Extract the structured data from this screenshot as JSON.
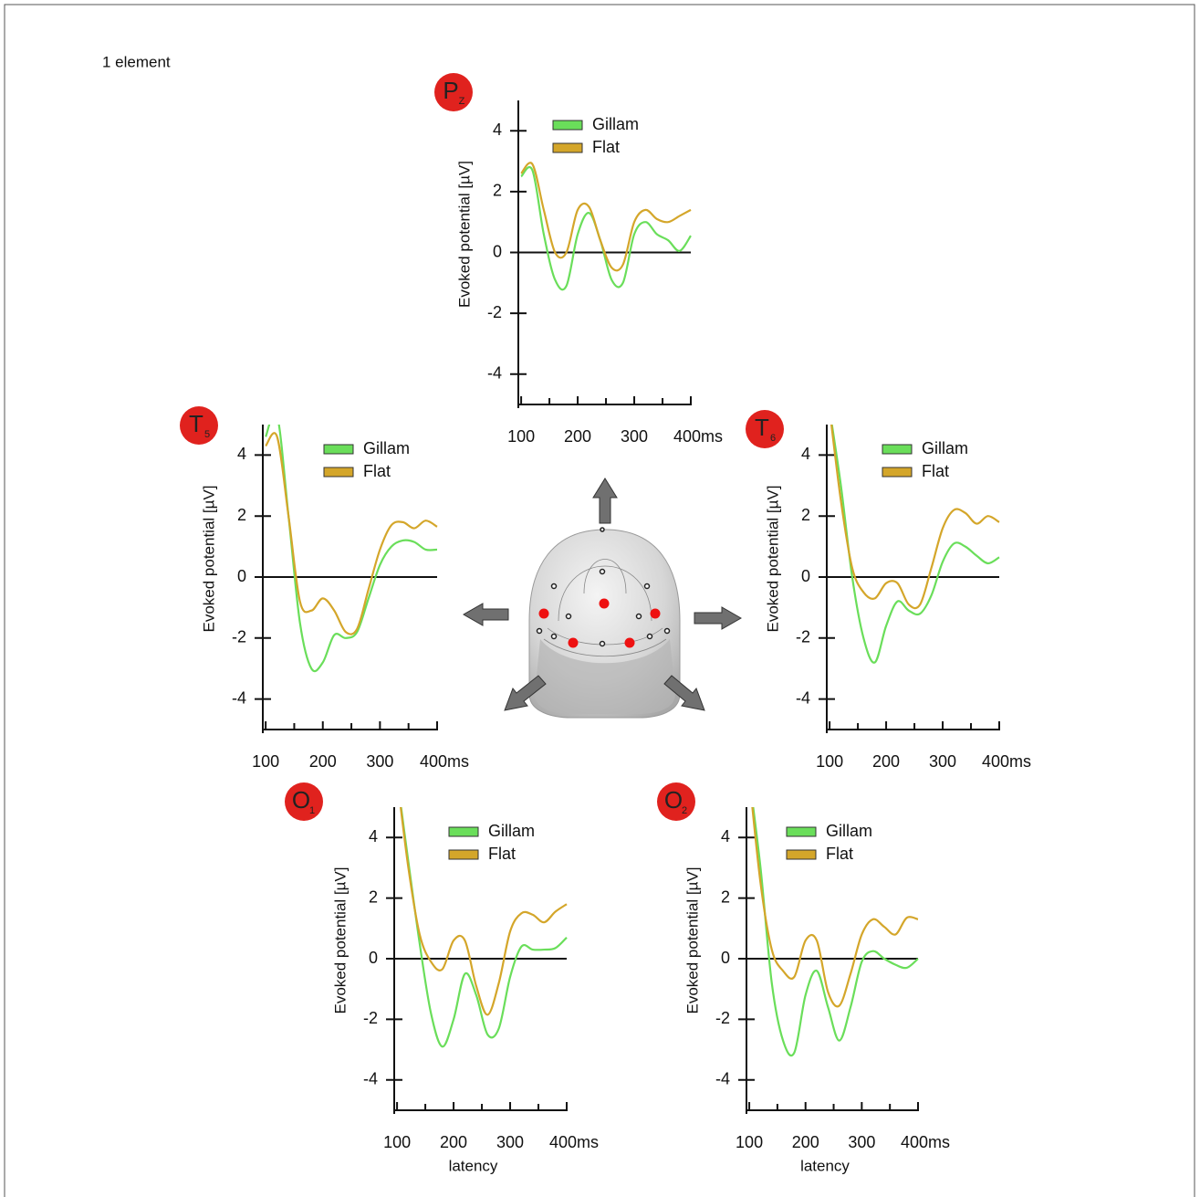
{
  "caption": "1 element",
  "chart_data": [
    {
      "type": "line",
      "electrode": {
        "letter": "P",
        "index": "Z"
      },
      "y_label": "Evoked potential [µV]",
      "x": [
        100,
        120,
        140,
        160,
        180,
        200,
        220,
        240,
        260,
        280,
        300,
        320,
        340,
        360,
        380,
        400
      ],
      "series": [
        {
          "name": "Gillam",
          "color": "#6ade5a",
          "values": [
            2.5,
            2.7,
            0.6,
            -0.9,
            -1.1,
            0.6,
            1.3,
            0.4,
            -0.9,
            -1.0,
            0.6,
            1.0,
            0.6,
            0.4,
            0.05,
            0.55
          ]
        },
        {
          "name": "Flat",
          "color": "#d4a62a",
          "values": [
            2.6,
            2.9,
            1.4,
            0.0,
            0.0,
            1.4,
            1.5,
            0.4,
            -0.5,
            -0.4,
            1.0,
            1.4,
            1.1,
            1.0,
            1.2,
            1.4
          ]
        }
      ],
      "xlim": [
        95,
        400
      ],
      "ylim": [
        -5,
        5
      ],
      "xticks": [
        100,
        200,
        300,
        {
          "value": 400,
          "label": "400ms"
        }
      ],
      "xminor_ticks": [
        150,
        250,
        350
      ],
      "yticks": [
        -4,
        -2,
        0,
        2,
        4
      ]
    },
    {
      "type": "line",
      "electrode": {
        "letter": "T",
        "index": "5"
      },
      "y_label": "Evoked potential [µV]",
      "x": [
        100,
        120,
        140,
        160,
        180,
        200,
        220,
        240,
        260,
        280,
        300,
        320,
        340,
        360,
        380,
        400
      ],
      "series": [
        {
          "name": "Gillam",
          "color": "#6ade5a",
          "values": [
            4.6,
            5.3,
            2.0,
            -1.5,
            -3.0,
            -2.8,
            -1.9,
            -2.0,
            -1.8,
            -0.7,
            0.4,
            1.0,
            1.2,
            1.15,
            0.9,
            0.9
          ]
        },
        {
          "name": "Flat",
          "color": "#d4a62a",
          "values": [
            4.3,
            4.6,
            2.0,
            -0.8,
            -1.1,
            -0.7,
            -1.1,
            -1.8,
            -1.7,
            -0.4,
            0.9,
            1.7,
            1.8,
            1.6,
            1.85,
            1.65
          ]
        }
      ],
      "xlim": [
        95,
        400
      ],
      "ylim": [
        -5,
        5
      ],
      "xticks": [
        100,
        200,
        300,
        {
          "value": 400,
          "label": "400ms"
        }
      ],
      "xminor_ticks": [
        150,
        250,
        350
      ],
      "yticks": [
        -4,
        -2,
        0,
        2,
        4
      ]
    },
    {
      "type": "line",
      "electrode": {
        "letter": "T",
        "index": "6"
      },
      "y_label": "Evoked potential [µV]",
      "x": [
        100,
        120,
        140,
        160,
        180,
        200,
        220,
        240,
        260,
        280,
        300,
        320,
        340,
        360,
        380,
        400
      ],
      "series": [
        {
          "name": "Gillam",
          "color": "#6ade5a",
          "values": [
            5.5,
            3.0,
            0.0,
            -2.0,
            -2.8,
            -1.6,
            -0.8,
            -1.1,
            -1.2,
            -0.6,
            0.5,
            1.1,
            1.0,
            0.7,
            0.45,
            0.65
          ]
        },
        {
          "name": "Flat",
          "color": "#d4a62a",
          "values": [
            5.5,
            2.5,
            0.3,
            -0.5,
            -0.7,
            -0.2,
            -0.2,
            -0.9,
            -0.9,
            0.3,
            1.6,
            2.2,
            2.1,
            1.75,
            2.0,
            1.8
          ]
        }
      ],
      "xlim": [
        95,
        400
      ],
      "ylim": [
        -5,
        5
      ],
      "xticks": [
        100,
        200,
        300,
        {
          "value": 400,
          "label": "400ms"
        }
      ],
      "xminor_ticks": [
        150,
        250,
        350
      ],
      "yticks": [
        -4,
        -2,
        0,
        2,
        4
      ]
    },
    {
      "type": "line",
      "electrode": {
        "letter": "O",
        "index": "1"
      },
      "y_label": "Evoked potential [µV]",
      "x_label": "latency",
      "x": [
        100,
        120,
        140,
        160,
        180,
        200,
        220,
        240,
        260,
        280,
        300,
        320,
        340,
        360,
        380,
        400
      ],
      "series": [
        {
          "name": "Gillam",
          "color": "#6ade5a",
          "values": [
            6.0,
            3.2,
            0.5,
            -1.8,
            -2.9,
            -2.0,
            -0.5,
            -1.2,
            -2.5,
            -2.3,
            -0.6,
            0.4,
            0.3,
            0.3,
            0.35,
            0.7
          ]
        },
        {
          "name": "Flat",
          "color": "#d4a62a",
          "values": [
            6.0,
            3.0,
            0.8,
            -0.1,
            -0.35,
            0.6,
            0.6,
            -0.9,
            -1.85,
            -0.8,
            0.9,
            1.5,
            1.45,
            1.2,
            1.55,
            1.8
          ]
        }
      ],
      "xlim": [
        95,
        400
      ],
      "ylim": [
        -5,
        5
      ],
      "xticks": [
        100,
        200,
        300,
        {
          "value": 400,
          "label": "400ms"
        }
      ],
      "xminor_ticks": [
        150,
        250,
        350
      ],
      "yticks": [
        -4,
        -2,
        0,
        2,
        4
      ]
    },
    {
      "type": "line",
      "electrode": {
        "letter": "O",
        "index": "2"
      },
      "y_label": "Evoked potential [µV]",
      "x_label": "latency",
      "x": [
        100,
        120,
        140,
        160,
        180,
        200,
        220,
        240,
        260,
        280,
        300,
        320,
        340,
        360,
        380,
        400
      ],
      "series": [
        {
          "name": "Gillam",
          "color": "#6ade5a",
          "values": [
            6.0,
            3.0,
            -0.8,
            -2.7,
            -3.1,
            -1.2,
            -0.4,
            -1.6,
            -2.7,
            -1.6,
            -0.1,
            0.25,
            0.0,
            -0.2,
            -0.3,
            0.0
          ]
        },
        {
          "name": "Flat",
          "color": "#d4a62a",
          "values": [
            6.0,
            2.5,
            0.3,
            -0.4,
            -0.6,
            0.6,
            0.6,
            -1.1,
            -1.55,
            -0.5,
            0.8,
            1.3,
            1.05,
            0.8,
            1.35,
            1.3
          ]
        }
      ],
      "xlim": [
        95,
        400
      ],
      "ylim": [
        -5,
        5
      ],
      "xticks": [
        100,
        200,
        300,
        {
          "value": 400,
          "label": "400ms"
        }
      ],
      "xminor_ticks": [
        150,
        250,
        350
      ],
      "yticks": [
        -4,
        -2,
        0,
        2,
        4
      ]
    }
  ]
}
